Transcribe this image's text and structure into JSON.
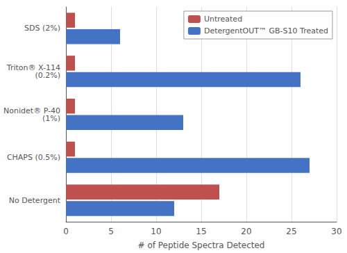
{
  "chart_data": {
    "type": "bar",
    "orientation": "horizontal",
    "categories": [
      "No Detergent",
      "CHAPS (0.5%)",
      "Nonidet® P-40\n(1%)",
      "Triton® X-114\n(0.2%)",
      "SDS (2%)"
    ],
    "series": [
      {
        "name": "Untreated",
        "color": "#C0504D",
        "values": [
          17,
          1,
          1,
          1,
          1
        ]
      },
      {
        "name": "DetergentOUT™ GB-S10 Treated",
        "color": "#4472C4",
        "values": [
          12,
          27,
          13,
          26,
          6
        ]
      }
    ],
    "xlabel": "# of Peptide Spectra Detected",
    "xlim": [
      0,
      30
    ],
    "xticks": [
      0,
      5,
      10,
      15,
      20,
      25,
      30
    ],
    "grid": true,
    "legend": "upper right"
  }
}
